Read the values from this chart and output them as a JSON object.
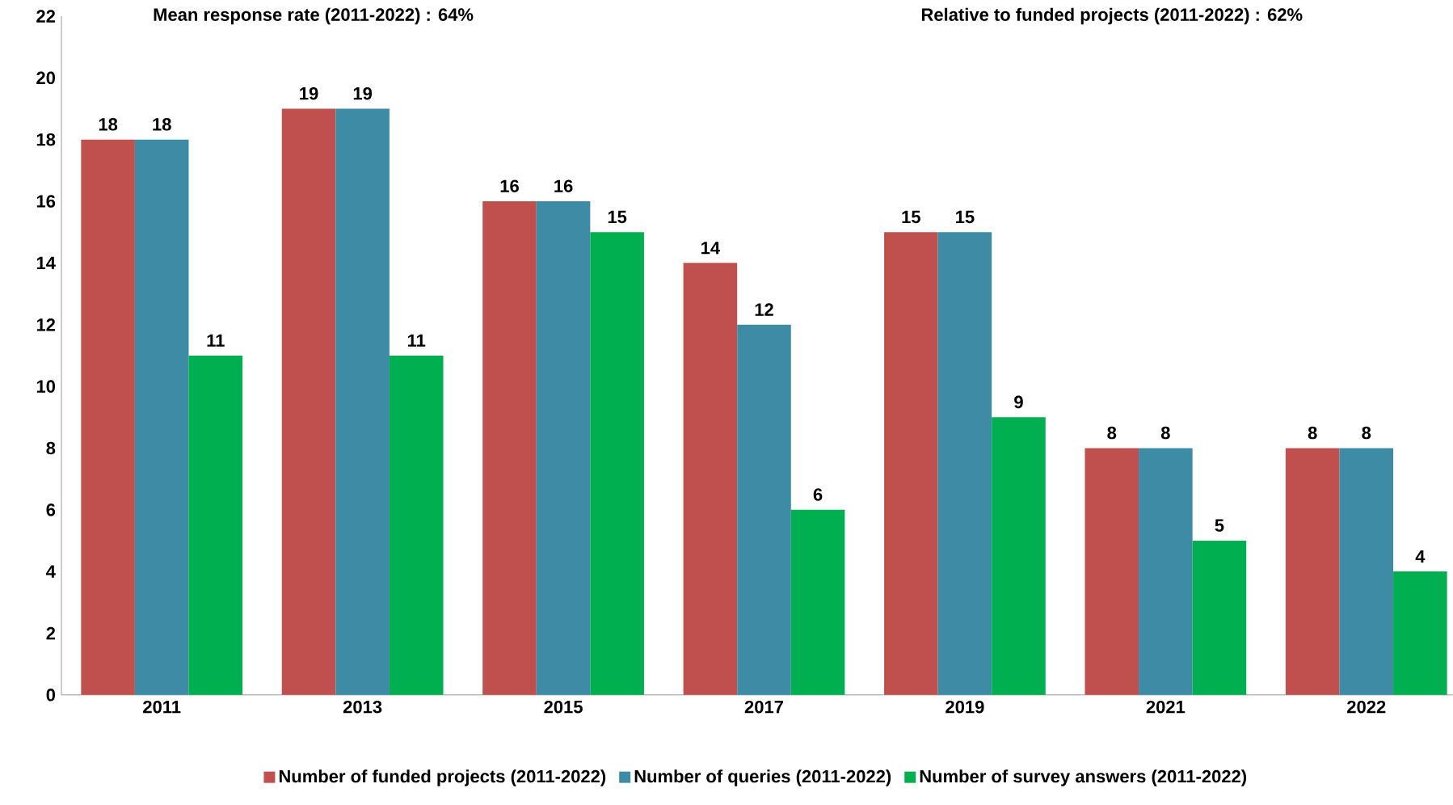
{
  "chart_data": {
    "type": "bar",
    "categories": [
      "2011",
      "2013",
      "2015",
      "2017",
      "2019",
      "2021",
      "2022"
    ],
    "series": [
      {
        "name": "Number of funded projects (2011-2022)",
        "color": "#c0504d",
        "values": [
          18,
          19,
          16,
          14,
          15,
          8,
          8
        ]
      },
      {
        "name": "Number of queries (2011-2022)",
        "color": "#3e8ba5",
        "values": [
          18,
          19,
          16,
          12,
          15,
          8,
          8
        ]
      },
      {
        "name": "Number of survey answers (2011-2022)",
        "color": "#00b050",
        "values": [
          11,
          11,
          15,
          6,
          9,
          5,
          4
        ]
      }
    ],
    "ylim": [
      0,
      22
    ],
    "yticks": [
      0,
      2,
      4,
      6,
      8,
      10,
      12,
      14,
      16,
      18,
      20,
      22
    ],
    "annotations": [
      "Mean response rate (2011-2022) : 64%",
      "Relative to funded projects (2011-2022) : 62%"
    ],
    "data_labels": true,
    "legend": "bottom",
    "grid": false
  }
}
